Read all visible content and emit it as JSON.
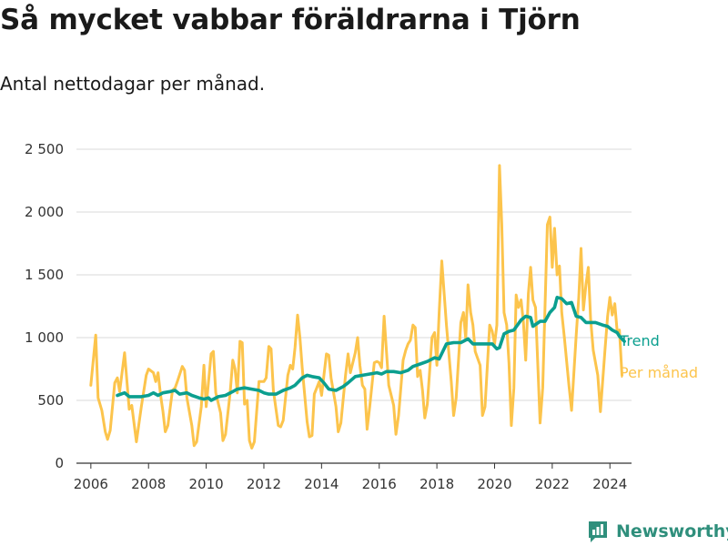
{
  "header": {
    "title": "Så mycket vabbar föräldrarna i Tjörn",
    "subtitle": "Antal nettodagar per månad."
  },
  "brand": {
    "name": "Newsworthy",
    "logo_icon": "bar-chart-logo-icon",
    "color": "#2f8f7c"
  },
  "chart_data": {
    "type": "line",
    "x_unit": "year",
    "xlim": [
      2005.5,
      2024.75
    ],
    "ylim": [
      0,
      2500
    ],
    "x_ticks": [
      2006,
      2008,
      2010,
      2012,
      2014,
      2016,
      2018,
      2020,
      2022,
      2024
    ],
    "x_tick_labels": [
      "2006",
      "2008",
      "2010",
      "2012",
      "2014",
      "2016",
      "2018",
      "2020",
      "2022",
      "2024"
    ],
    "y_ticks": [
      0,
      500,
      1000,
      1500,
      2000,
      2500
    ],
    "y_tick_labels": [
      "0",
      "500",
      "1 000",
      "1 500",
      "2 000",
      "2 500"
    ],
    "grid": "horizontal",
    "legend": "direct labels at line ends",
    "series": [
      {
        "name": "Per månad",
        "color": "#fcc44c",
        "points": [
          [
            2006.0,
            620
          ],
          [
            2006.17,
            1020
          ],
          [
            2006.25,
            520
          ],
          [
            2006.38,
            420
          ],
          [
            2006.5,
            250
          ],
          [
            2006.58,
            190
          ],
          [
            2006.67,
            260
          ],
          [
            2006.83,
            640
          ],
          [
            2006.92,
            680
          ],
          [
            2007.0,
            570
          ],
          [
            2007.17,
            880
          ],
          [
            2007.33,
            430
          ],
          [
            2007.42,
            460
          ],
          [
            2007.58,
            170
          ],
          [
            2007.75,
            450
          ],
          [
            2007.92,
            700
          ],
          [
            2008.0,
            750
          ],
          [
            2008.17,
            720
          ],
          [
            2008.25,
            650
          ],
          [
            2008.33,
            720
          ],
          [
            2008.42,
            540
          ],
          [
            2008.5,
            410
          ],
          [
            2008.58,
            250
          ],
          [
            2008.67,
            300
          ],
          [
            2008.83,
            580
          ],
          [
            2008.92,
            600
          ],
          [
            2009.0,
            650
          ],
          [
            2009.17,
            770
          ],
          [
            2009.25,
            740
          ],
          [
            2009.33,
            520
          ],
          [
            2009.5,
            300
          ],
          [
            2009.58,
            140
          ],
          [
            2009.67,
            170
          ],
          [
            2009.83,
            450
          ],
          [
            2009.92,
            780
          ],
          [
            2010.0,
            450
          ],
          [
            2010.17,
            870
          ],
          [
            2010.25,
            890
          ],
          [
            2010.33,
            560
          ],
          [
            2010.5,
            400
          ],
          [
            2010.58,
            180
          ],
          [
            2010.67,
            230
          ],
          [
            2010.83,
            560
          ],
          [
            2010.92,
            820
          ],
          [
            2011.0,
            750
          ],
          [
            2011.08,
            560
          ],
          [
            2011.17,
            970
          ],
          [
            2011.25,
            960
          ],
          [
            2011.33,
            470
          ],
          [
            2011.42,
            500
          ],
          [
            2011.5,
            180
          ],
          [
            2011.58,
            120
          ],
          [
            2011.67,
            170
          ],
          [
            2011.83,
            650
          ],
          [
            2012.0,
            650
          ],
          [
            2012.08,
            680
          ],
          [
            2012.17,
            930
          ],
          [
            2012.25,
            910
          ],
          [
            2012.33,
            580
          ],
          [
            2012.5,
            300
          ],
          [
            2012.58,
            290
          ],
          [
            2012.67,
            340
          ],
          [
            2012.83,
            700
          ],
          [
            2012.92,
            780
          ],
          [
            2013.0,
            750
          ],
          [
            2013.08,
            920
          ],
          [
            2013.17,
            1180
          ],
          [
            2013.25,
            1000
          ],
          [
            2013.33,
            760
          ],
          [
            2013.5,
            330
          ],
          [
            2013.58,
            210
          ],
          [
            2013.67,
            220
          ],
          [
            2013.75,
            550
          ],
          [
            2013.92,
            650
          ],
          [
            2014.0,
            540
          ],
          [
            2014.17,
            870
          ],
          [
            2014.25,
            860
          ],
          [
            2014.33,
            680
          ],
          [
            2014.5,
            450
          ],
          [
            2014.58,
            250
          ],
          [
            2014.67,
            320
          ],
          [
            2014.83,
            700
          ],
          [
            2014.92,
            870
          ],
          [
            2015.0,
            720
          ],
          [
            2015.17,
            880
          ],
          [
            2015.25,
            1000
          ],
          [
            2015.33,
            780
          ],
          [
            2015.42,
            620
          ],
          [
            2015.5,
            590
          ],
          [
            2015.58,
            270
          ],
          [
            2015.67,
            450
          ],
          [
            2015.83,
            800
          ],
          [
            2015.92,
            810
          ],
          [
            2016.0,
            800
          ],
          [
            2016.08,
            760
          ],
          [
            2016.17,
            1170
          ],
          [
            2016.25,
            900
          ],
          [
            2016.33,
            620
          ],
          [
            2016.5,
            460
          ],
          [
            2016.58,
            230
          ],
          [
            2016.67,
            380
          ],
          [
            2016.83,
            820
          ],
          [
            2016.92,
            900
          ],
          [
            2017.0,
            950
          ],
          [
            2017.08,
            980
          ],
          [
            2017.17,
            1100
          ],
          [
            2017.25,
            1080
          ],
          [
            2017.33,
            690
          ],
          [
            2017.42,
            740
          ],
          [
            2017.5,
            580
          ],
          [
            2017.58,
            360
          ],
          [
            2017.67,
            470
          ],
          [
            2017.83,
            1000
          ],
          [
            2017.92,
            1040
          ],
          [
            2018.0,
            780
          ],
          [
            2018.08,
            1200
          ],
          [
            2018.17,
            1610
          ],
          [
            2018.25,
            1360
          ],
          [
            2018.33,
            1100
          ],
          [
            2018.5,
            650
          ],
          [
            2018.58,
            380
          ],
          [
            2018.67,
            520
          ],
          [
            2018.83,
            1120
          ],
          [
            2018.92,
            1200
          ],
          [
            2019.0,
            990
          ],
          [
            2019.08,
            1420
          ],
          [
            2019.17,
            1200
          ],
          [
            2019.25,
            1100
          ],
          [
            2019.33,
            890
          ],
          [
            2019.5,
            780
          ],
          [
            2019.58,
            380
          ],
          [
            2019.67,
            450
          ],
          [
            2019.83,
            1100
          ],
          [
            2019.92,
            1050
          ],
          [
            2020.0,
            950
          ],
          [
            2020.08,
            1100
          ],
          [
            2020.17,
            2370
          ],
          [
            2020.25,
            1900
          ],
          [
            2020.33,
            1200
          ],
          [
            2020.42,
            1100
          ],
          [
            2020.5,
            800
          ],
          [
            2020.58,
            300
          ],
          [
            2020.67,
            600
          ],
          [
            2020.75,
            1340
          ],
          [
            2020.83,
            1240
          ],
          [
            2020.92,
            1300
          ],
          [
            2021.0,
            1120
          ],
          [
            2021.08,
            820
          ],
          [
            2021.17,
            1350
          ],
          [
            2021.25,
            1560
          ],
          [
            2021.33,
            1300
          ],
          [
            2021.42,
            1240
          ],
          [
            2021.58,
            320
          ],
          [
            2021.67,
            600
          ],
          [
            2021.83,
            1900
          ],
          [
            2021.92,
            1960
          ],
          [
            2022.0,
            1560
          ],
          [
            2022.08,
            1870
          ],
          [
            2022.17,
            1500
          ],
          [
            2022.25,
            1570
          ],
          [
            2022.33,
            1200
          ],
          [
            2022.42,
            1000
          ],
          [
            2022.58,
            620
          ],
          [
            2022.67,
            420
          ],
          [
            2022.83,
            1020
          ],
          [
            2022.92,
            1320
          ],
          [
            2023.0,
            1710
          ],
          [
            2023.08,
            1220
          ],
          [
            2023.17,
            1420
          ],
          [
            2023.25,
            1560
          ],
          [
            2023.33,
            1150
          ],
          [
            2023.42,
            900
          ],
          [
            2023.58,
            700
          ],
          [
            2023.67,
            410
          ],
          [
            2023.83,
            900
          ],
          [
            2023.92,
            1170
          ],
          [
            2024.0,
            1320
          ],
          [
            2024.08,
            1180
          ],
          [
            2024.17,
            1270
          ],
          [
            2024.25,
            1050
          ],
          [
            2024.33,
            1060
          ],
          [
            2024.42,
            700
          ]
        ]
      },
      {
        "name": "Trend",
        "color": "#0b9f8f",
        "points": [
          [
            2006.92,
            540
          ],
          [
            2007.17,
            560
          ],
          [
            2007.33,
            530
          ],
          [
            2007.75,
            530
          ],
          [
            2008.0,
            540
          ],
          [
            2008.17,
            560
          ],
          [
            2008.33,
            540
          ],
          [
            2008.5,
            560
          ],
          [
            2008.75,
            570
          ],
          [
            2008.92,
            580
          ],
          [
            2009.08,
            550
          ],
          [
            2009.33,
            560
          ],
          [
            2009.5,
            540
          ],
          [
            2009.75,
            520
          ],
          [
            2009.92,
            510
          ],
          [
            2010.08,
            520
          ],
          [
            2010.17,
            500
          ],
          [
            2010.42,
            530
          ],
          [
            2010.67,
            540
          ],
          [
            2010.92,
            570
          ],
          [
            2011.08,
            590
          ],
          [
            2011.33,
            600
          ],
          [
            2011.58,
            590
          ],
          [
            2011.83,
            580
          ],
          [
            2012.0,
            560
          ],
          [
            2012.17,
            550
          ],
          [
            2012.42,
            550
          ],
          [
            2012.67,
            580
          ],
          [
            2012.92,
            600
          ],
          [
            2013.08,
            620
          ],
          [
            2013.33,
            680
          ],
          [
            2013.5,
            700
          ],
          [
            2013.67,
            690
          ],
          [
            2013.92,
            680
          ],
          [
            2014.08,
            640
          ],
          [
            2014.25,
            590
          ],
          [
            2014.5,
            580
          ],
          [
            2014.75,
            610
          ],
          [
            2014.92,
            640
          ],
          [
            2015.17,
            690
          ],
          [
            2015.42,
            700
          ],
          [
            2015.67,
            710
          ],
          [
            2015.92,
            720
          ],
          [
            2016.08,
            710
          ],
          [
            2016.25,
            730
          ],
          [
            2016.5,
            730
          ],
          [
            2016.75,
            720
          ],
          [
            2017.0,
            740
          ],
          [
            2017.17,
            770
          ],
          [
            2017.42,
            790
          ],
          [
            2017.67,
            810
          ],
          [
            2017.92,
            840
          ],
          [
            2018.08,
            830
          ],
          [
            2018.33,
            950
          ],
          [
            2018.58,
            960
          ],
          [
            2018.83,
            960
          ],
          [
            2019.08,
            990
          ],
          [
            2019.25,
            950
          ],
          [
            2019.5,
            950
          ],
          [
            2019.75,
            950
          ],
          [
            2019.92,
            950
          ],
          [
            2020.08,
            910
          ],
          [
            2020.17,
            920
          ],
          [
            2020.33,
            1030
          ],
          [
            2020.5,
            1050
          ],
          [
            2020.67,
            1060
          ],
          [
            2020.92,
            1140
          ],
          [
            2021.08,
            1170
          ],
          [
            2021.25,
            1160
          ],
          [
            2021.33,
            1090
          ],
          [
            2021.58,
            1130
          ],
          [
            2021.75,
            1130
          ],
          [
            2021.92,
            1200
          ],
          [
            2022.08,
            1240
          ],
          [
            2022.17,
            1320
          ],
          [
            2022.33,
            1310
          ],
          [
            2022.5,
            1270
          ],
          [
            2022.67,
            1280
          ],
          [
            2022.83,
            1170
          ],
          [
            2023.0,
            1160
          ],
          [
            2023.17,
            1120
          ],
          [
            2023.5,
            1120
          ],
          [
            2023.75,
            1100
          ],
          [
            2023.92,
            1090
          ],
          [
            2024.08,
            1060
          ],
          [
            2024.25,
            1040
          ],
          [
            2024.33,
            1010
          ],
          [
            2024.5,
            970
          ]
        ]
      }
    ]
  }
}
